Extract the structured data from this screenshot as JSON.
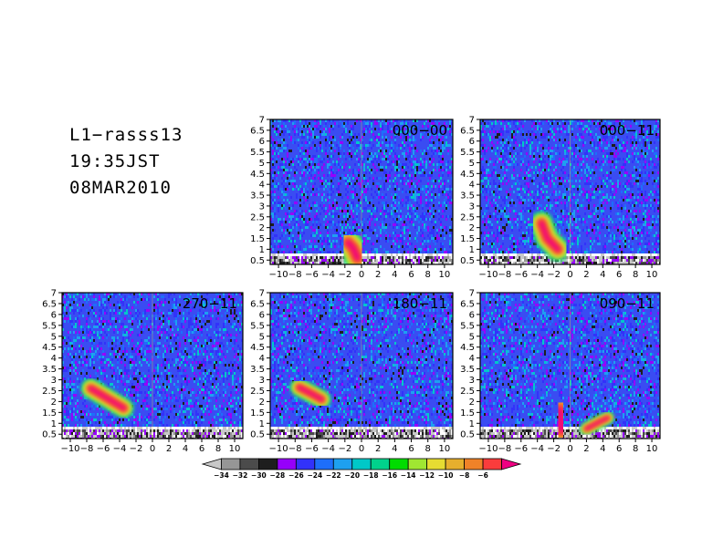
{
  "header": {
    "station": "L1−rasss13",
    "time": "19:35JST",
    "date": "08MAR2010"
  },
  "chart_data": {
    "type": "heatmap",
    "x_ticks": [
      "−10",
      "−8",
      "−6",
      "−4",
      "−2",
      "0",
      "2",
      "4",
      "6",
      "8",
      "10"
    ],
    "y_ticks": [
      "0.5",
      "1",
      "1.5",
      "2",
      "2.5",
      "3",
      "3.5",
      "4",
      "4.5",
      "5",
      "5.5",
      "6",
      "6.5",
      "7"
    ],
    "xlim": [
      -11,
      11
    ],
    "ylim": [
      0.3,
      7
    ],
    "panels": [
      {
        "label": "000−00",
        "features": [
          {
            "points": [
              [
                -1.6,
                1.3
              ],
              [
                -1.0,
                1.05
              ],
              [
                -0.5,
                0.6
              ]
            ],
            "w": 0.55
          }
        ]
      },
      {
        "label": "000−11",
        "features": [
          {
            "points": [
              [
                -3.5,
                2.2
              ],
              [
                -2.8,
                1.5
              ],
              [
                -1.5,
                1.0
              ]
            ],
            "w": 0.45
          }
        ]
      },
      {
        "label": "270−11",
        "features": [
          {
            "points": [
              [
                -7.5,
                2.6
              ],
              [
                -5.5,
                2.15
              ],
              [
                -3.5,
                1.7
              ]
            ],
            "w": 0.35
          }
        ]
      },
      {
        "label": "180−11",
        "features": [
          {
            "points": [
              [
                -7.5,
                2.65
              ],
              [
                -6.0,
                2.35
              ],
              [
                -4.8,
                2.1
              ]
            ],
            "w": 0.3
          }
        ]
      },
      {
        "label": "090−11",
        "features": [
          {
            "points": [
              [
                -1.3,
                1.55
              ],
              [
                -1.1,
                1.1
              ],
              [
                -1.0,
                0.75
              ]
            ],
            "w": 0.9
          },
          {
            "points": [
              [
                2.0,
                0.75
              ],
              [
                3.5,
                1.05
              ],
              [
                4.6,
                1.25
              ]
            ],
            "w": 0.15
          }
        ]
      }
    ],
    "colorbar": {
      "labels": [
        "−34",
        "−32",
        "−30",
        "−28",
        "−26",
        "−24",
        "−22",
        "−20",
        "−18",
        "−16",
        "−14",
        "−12",
        "−10",
        "−8",
        "−6"
      ],
      "colors": [
        "#c8c8c8",
        "#969696",
        "#4b4b4b",
        "#1e1e1e",
        "#9600fa",
        "#3232fa",
        "#1e6efa",
        "#1ea0f0",
        "#00c8c8",
        "#00d28c",
        "#00dc00",
        "#a0e632",
        "#e6dc32",
        "#e6af2d",
        "#f08228",
        "#fa3c3c",
        "#f00082"
      ]
    }
  }
}
